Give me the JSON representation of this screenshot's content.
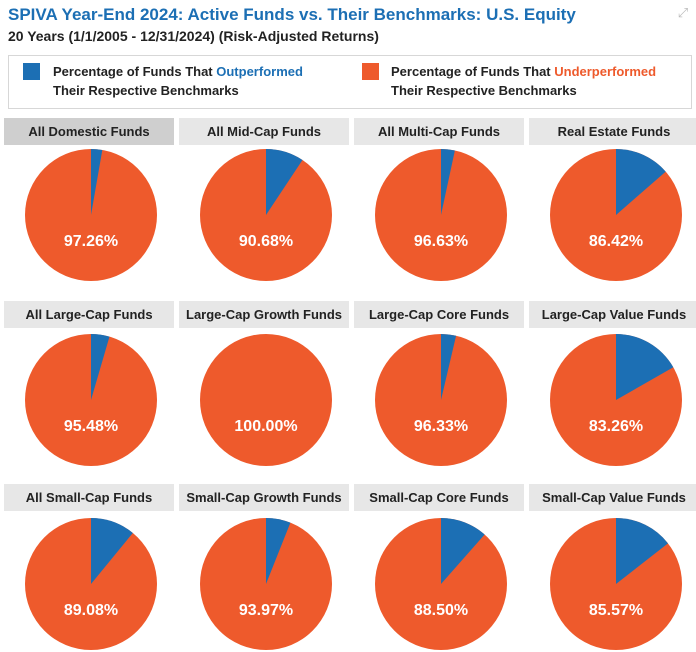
{
  "title": "SPIVA Year-End 2024: Active Funds vs. Their Benchmarks: U.S. Equity",
  "subtitle": "20 Years (1/1/2005 - 12/31/2024) (Risk-Adjusted Returns)",
  "icons": {
    "expand": "expand-arrows-icon"
  },
  "legend": {
    "outperformed": {
      "prefix": "Percentage of Funds That ",
      "keyword": "Outperformed",
      "line2": "Their Respective Benchmarks",
      "color": "#1c6fb4"
    },
    "underperformed": {
      "prefix": "Percentage of Funds That ",
      "keyword": "Underperformed",
      "line2": "Their Respective Benchmarks",
      "color": "#ee5a2c"
    }
  },
  "colors": {
    "outperformed": "#1c6fb4",
    "underperformed": "#ee5a2c",
    "header_bg": "#e7e7e7",
    "header_selected_bg": "#cfcfcf"
  },
  "chart_data": [
    {
      "type": "pie",
      "title": "All Domestic Funds",
      "underperformed": 97.26,
      "label": "97.26%"
    },
    {
      "type": "pie",
      "title": "All Mid-Cap Funds",
      "underperformed": 90.68,
      "label": "90.68%"
    },
    {
      "type": "pie",
      "title": "All Multi-Cap Funds",
      "underperformed": 96.63,
      "label": "96.63%"
    },
    {
      "type": "pie",
      "title": "Real Estate Funds",
      "underperformed": 86.42,
      "label": "86.42%"
    },
    {
      "type": "pie",
      "title": "All Large-Cap Funds",
      "underperformed": 95.48,
      "label": "95.48%"
    },
    {
      "type": "pie",
      "title": "Large-Cap Growth Funds",
      "underperformed": 100.0,
      "label": "100.00%"
    },
    {
      "type": "pie",
      "title": "Large-Cap Core Funds",
      "underperformed": 96.33,
      "label": "96.33%"
    },
    {
      "type": "pie",
      "title": "Large-Cap Value Funds",
      "underperformed": 83.26,
      "label": "83.26%"
    },
    {
      "type": "pie",
      "title": "All Small-Cap Funds",
      "underperformed": 89.08,
      "label": "89.08%"
    },
    {
      "type": "pie",
      "title": "Small-Cap Growth Funds",
      "underperformed": 93.97,
      "label": "93.97%"
    },
    {
      "type": "pie",
      "title": "Small-Cap Core Funds",
      "underperformed": 88.5,
      "label": "88.50%"
    },
    {
      "type": "pie",
      "title": "Small-Cap Value Funds",
      "underperformed": 85.57,
      "label": "85.57%"
    }
  ]
}
